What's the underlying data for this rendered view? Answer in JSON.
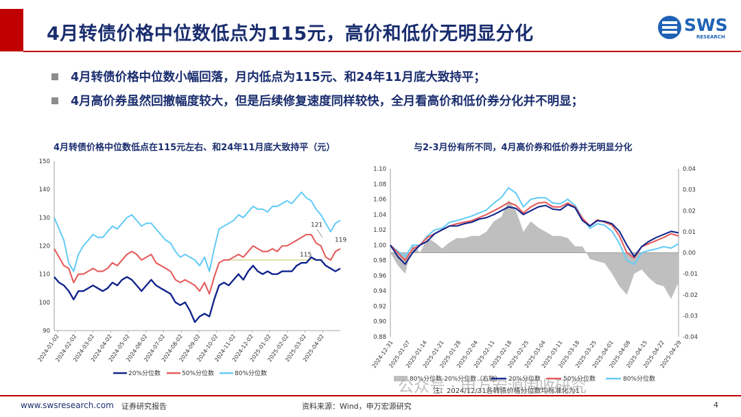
{
  "header": {
    "title": "4月转债价格中位数低点为115元，高价和低价无明显分化",
    "logo_text": "SWS",
    "logo_sub": "RESEARCH"
  },
  "bullets": [
    "4月转债价格中位数小幅回落，月内低点为115元、和24年11月底大致持平；",
    "4月高价券虽然回撤幅度较大，但是后续修复速度同样较快，全月看高价和低价券分化并不明显；"
  ],
  "colors": {
    "p20": "#10248c",
    "p50": "#e55a5a",
    "p80": "#66ccf5",
    "spread": "#bfbfbf",
    "hline": "#c8c86e",
    "accent": "#c00000"
  },
  "chart_data": [
    {
      "type": "line",
      "title": "4月转债价格中位数低点在115元左右、和24年11月底大致持平（元）",
      "ylim": [
        90,
        150
      ],
      "yticks": [
        "90",
        "100",
        "110",
        "120",
        "130",
        "140",
        "150"
      ],
      "x_labels": [
        "2024-01-02",
        "2024-02-02",
        "2024-03-02",
        "2024-04-02",
        "2024-05-02",
        "2024-06-02",
        "2024-07-02",
        "2024-08-02",
        "2024-09-02",
        "2024-10-02",
        "2024-11-02",
        "2024-12-02",
        "2025-01-02",
        "2025-02-02",
        "2025-03-02",
        "2025-04-02"
      ],
      "series": [
        {
          "name": "20%分位数",
          "color_key": "p20",
          "values": [
            109,
            107,
            106,
            104,
            101,
            104,
            104,
            105,
            106,
            105,
            104,
            105,
            107,
            106,
            108,
            109,
            108,
            106,
            104,
            106,
            108,
            106,
            105,
            104,
            103,
            100,
            99,
            100,
            97,
            93,
            95,
            96,
            95,
            101,
            106,
            107,
            106,
            108,
            110,
            108,
            111,
            113,
            111,
            110,
            111,
            110,
            110,
            111,
            111,
            111,
            113,
            114,
            114,
            116,
            115,
            115,
            113,
            112,
            111,
            112
          ]
        },
        {
          "name": "50%分位数",
          "color_key": "p50",
          "values": [
            119,
            116,
            113,
            112,
            107,
            110,
            110,
            111,
            112,
            111,
            111,
            112,
            114,
            113,
            115,
            117,
            118,
            117,
            115,
            116,
            117,
            114,
            113,
            112,
            111,
            108,
            107,
            108,
            107,
            106,
            104,
            107,
            103,
            109,
            114,
            115,
            115,
            116,
            117,
            116,
            118,
            120,
            119,
            118,
            118,
            119,
            118,
            120,
            120,
            121,
            122,
            123,
            124,
            124,
            121,
            120,
            116,
            115,
            118,
            119
          ]
        },
        {
          "name": "80%分位数",
          "color_key": "p80",
          "values": [
            130,
            126,
            122,
            114,
            111,
            117,
            120,
            122,
            124,
            123,
            123,
            125,
            127,
            126,
            128,
            130,
            131,
            129,
            127,
            128,
            128,
            126,
            124,
            122,
            121,
            118,
            116,
            117,
            116,
            115,
            113,
            116,
            111,
            119,
            126,
            127,
            128,
            129,
            131,
            130,
            132,
            134,
            133,
            133,
            132,
            134,
            134,
            135,
            136,
            135,
            137,
            139,
            137,
            136,
            133,
            131,
            128,
            125,
            128,
            129
          ]
        }
      ],
      "hline_value": 115,
      "annotations": [
        {
          "label": "121",
          "value": 121
        },
        {
          "label": "115",
          "value": 115
        },
        {
          "label": "119",
          "value": 119
        }
      ]
    },
    {
      "type": "line",
      "title": "与2-3月份有所不同，4月高价券和低价券并无明显分化",
      "ylim": [
        0.88,
        1.1
      ],
      "yticks": [
        "0.88",
        "0.90",
        "0.92",
        "0.94",
        "0.96",
        "0.98",
        "1.00",
        "1.02",
        "1.04",
        "1.06",
        "1.08",
        "1.10"
      ],
      "y2lim": [
        -0.04,
        0.04
      ],
      "y2ticks": [
        "-0.04",
        "-0.03",
        "-0.02",
        "-0.01",
        "0.00",
        "0.01",
        "0.02",
        "0.03",
        "0.04"
      ],
      "x_labels": [
        "2024-12-31",
        "2025-01-07",
        "2025-01-14",
        "2025-01-21",
        "2025-01-28",
        "2025-02-04",
        "2025-02-11",
        "2025-02-18",
        "2025-02-25",
        "2025-03-04",
        "2025-03-11",
        "2025-03-18",
        "2025-03-25",
        "2025-04-01",
        "2025-04-08",
        "2025-04-15",
        "2025-04-22",
        "2025-04-29"
      ],
      "series": [
        {
          "name": "20%分位数",
          "color_key": "p20",
          "axis": "left",
          "values": [
            1.0,
            0.985,
            0.975,
            0.99,
            1.0,
            1.005,
            1.015,
            1.02,
            1.025,
            1.025,
            1.028,
            1.03,
            1.034,
            1.036,
            1.04,
            1.045,
            1.05,
            1.048,
            1.04,
            1.045,
            1.05,
            1.052,
            1.047,
            1.046,
            1.053,
            1.049,
            1.032,
            1.025,
            1.032,
            1.031,
            1.028,
            1.018,
            1.0,
            0.985,
            0.998,
            1.005,
            1.01,
            1.014,
            1.018,
            1.016
          ]
        },
        {
          "name": "50%分位数",
          "color_key": "p50",
          "axis": "left",
          "values": [
            1.0,
            0.99,
            0.98,
            0.995,
            1.0,
            1.01,
            1.015,
            1.02,
            1.025,
            1.028,
            1.03,
            1.032,
            1.036,
            1.04,
            1.045,
            1.05,
            1.056,
            1.052,
            1.042,
            1.05,
            1.055,
            1.056,
            1.05,
            1.05,
            1.055,
            1.05,
            1.035,
            1.025,
            1.033,
            1.03,
            1.026,
            1.012,
            0.99,
            0.983,
            0.998,
            1.002,
            1.006,
            1.01,
            1.015,
            1.012
          ]
        },
        {
          "name": "80%分位数",
          "color_key": "p80",
          "axis": "left",
          "values": [
            1.0,
            0.992,
            0.985,
            1.0,
            1.0,
            1.012,
            1.02,
            1.022,
            1.03,
            1.032,
            1.035,
            1.038,
            1.042,
            1.046,
            1.055,
            1.062,
            1.075,
            1.068,
            1.05,
            1.06,
            1.062,
            1.062,
            1.055,
            1.054,
            1.06,
            1.052,
            1.035,
            1.022,
            1.028,
            1.026,
            1.018,
            1.002,
            0.98,
            0.975,
            0.99,
            0.993,
            0.995,
            0.998,
            0.996,
            1.002
          ]
        },
        {
          "name": "80%分位数-20%分位数（右轴）",
          "color_key": "spread",
          "axis": "right",
          "type": "area",
          "values": [
            0.0,
            -0.006,
            -0.01,
            0.004,
            0.0,
            0.007,
            0.005,
            0.002,
            0.005,
            0.007,
            0.007,
            0.008,
            0.008,
            0.01,
            0.015,
            0.017,
            0.025,
            0.02,
            0.01,
            0.015,
            0.012,
            0.01,
            0.008,
            0.008,
            0.007,
            0.003,
            0.003,
            -0.003,
            -0.004,
            -0.005,
            -0.01,
            -0.016,
            -0.02,
            -0.01,
            -0.008,
            -0.012,
            -0.015,
            -0.016,
            -0.022,
            -0.014
          ]
        }
      ],
      "note": "注：2024/12/31各转债价格分位数均标准化为1"
    }
  ],
  "watermark": "公众号 · 申万宏源固收研究",
  "footer": {
    "url": "www.swsresearch.com",
    "report_type": "证券研究报告",
    "source": "资料来源：Wind，申万宏源研究",
    "page": "4"
  }
}
